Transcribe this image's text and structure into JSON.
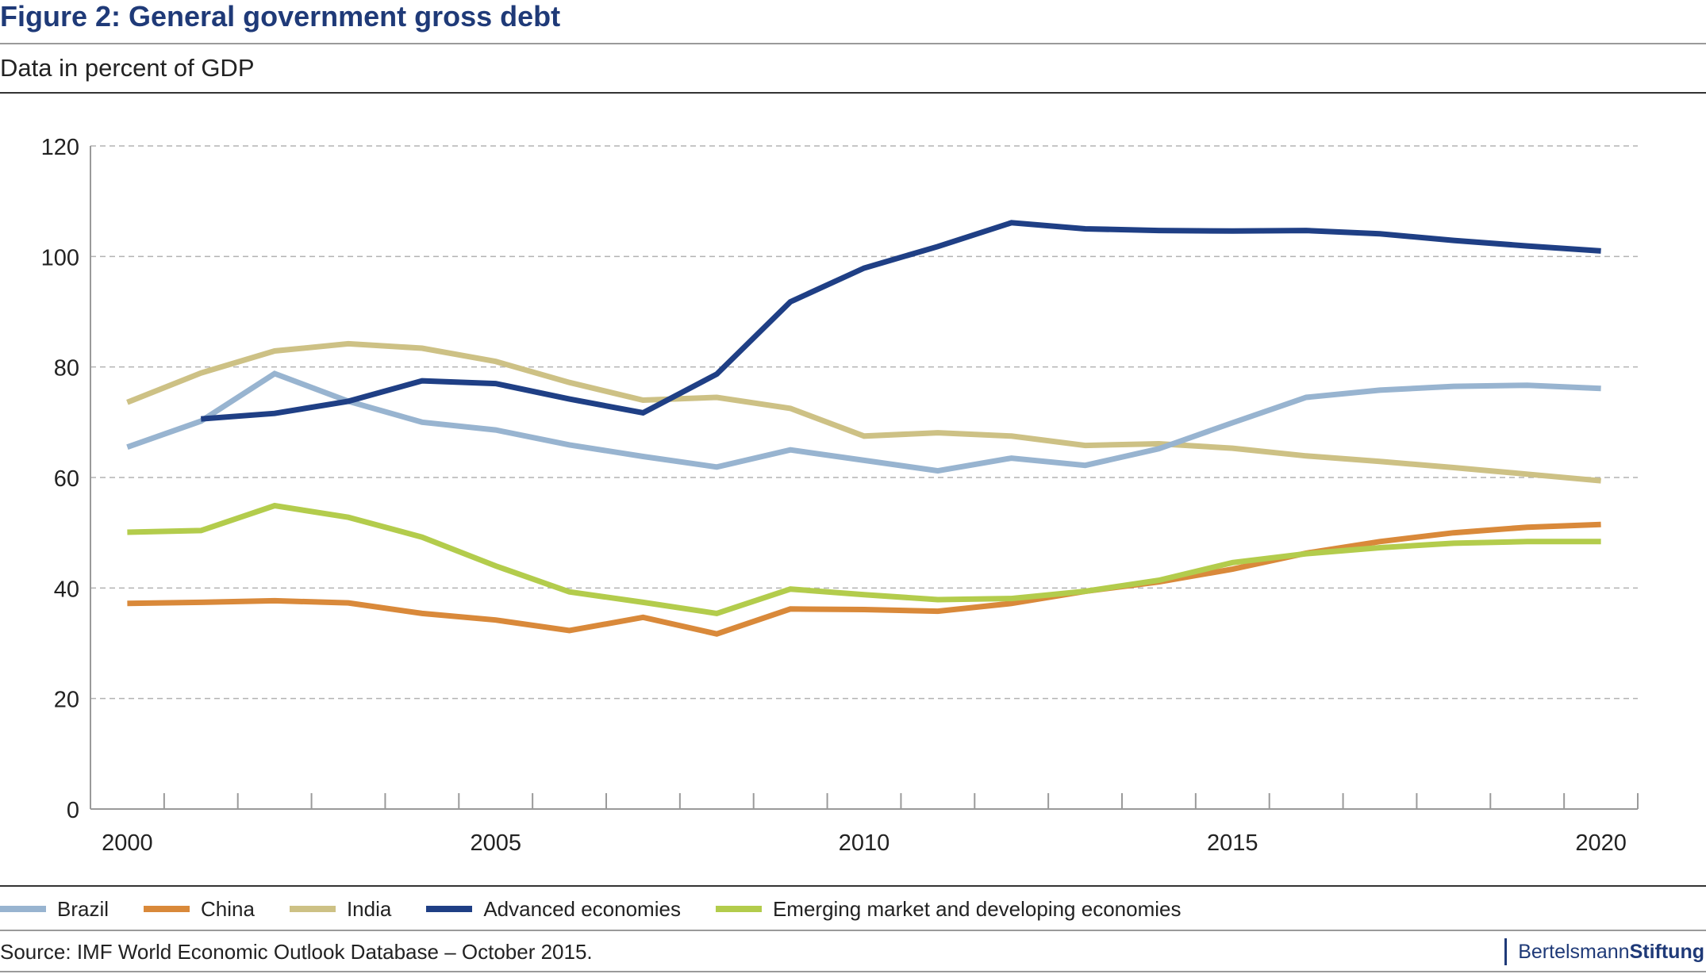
{
  "header": {
    "title": "Figure 2: General government gross debt",
    "subtitle": "Data in percent of GDP"
  },
  "footer": {
    "source": "Source: IMF World Economic Outlook Database – October 2015.",
    "brand_regular": "Bertelsmann",
    "brand_bold": "Stiftung"
  },
  "chart_data": {
    "type": "line",
    "title": "Figure 2: General government gross debt",
    "subtitle": "Data in percent of GDP",
    "xlabel": "",
    "ylabel": "",
    "x": [
      2000,
      2001,
      2002,
      2003,
      2004,
      2005,
      2006,
      2007,
      2008,
      2009,
      2010,
      2011,
      2012,
      2013,
      2014,
      2015,
      2016,
      2017,
      2018,
      2019,
      2020
    ],
    "xlim": [
      1999.5,
      2020.5
    ],
    "ylim": [
      0,
      120
    ],
    "x_ticks": [
      2000,
      2005,
      2010,
      2015,
      2020
    ],
    "y_ticks": [
      0,
      20,
      40,
      60,
      80,
      100,
      120
    ],
    "grid": "horizontal dashed",
    "legend_position": "bottom",
    "series": [
      {
        "name": "Brazil",
        "color": "#98b4d0",
        "values": [
          65.5,
          70.2,
          78.8,
          73.8,
          70.0,
          68.6,
          65.9,
          63.8,
          61.9,
          65.0,
          63.1,
          61.2,
          63.5,
          62.2,
          65.2,
          69.9,
          74.5,
          75.8,
          76.5,
          76.7,
          76.1
        ]
      },
      {
        "name": "China",
        "color": "#d9893a",
        "values": [
          37.2,
          37.4,
          37.7,
          37.3,
          35.4,
          34.2,
          32.3,
          34.7,
          31.7,
          36.2,
          36.1,
          35.8,
          37.2,
          39.4,
          41.1,
          43.4,
          46.3,
          48.4,
          50.0,
          51.0,
          51.5
        ]
      },
      {
        "name": "India",
        "color": "#cdc185",
        "values": [
          73.6,
          78.9,
          82.9,
          84.2,
          83.4,
          81.0,
          77.2,
          74.0,
          74.5,
          72.5,
          67.5,
          68.1,
          67.5,
          65.8,
          66.1,
          65.3,
          63.9,
          62.9,
          61.8,
          60.6,
          59.4
        ]
      },
      {
        "name": "Advanced economies",
        "color": "#1f3f85",
        "values": [
          null,
          70.6,
          71.6,
          73.8,
          77.5,
          77.0,
          74.2,
          71.7,
          78.7,
          91.8,
          97.9,
          101.8,
          106.1,
          105.0,
          104.7,
          104.6,
          104.7,
          104.1,
          102.9,
          101.9,
          101.0
        ]
      },
      {
        "name": "Emerging market and developing economies",
        "color": "#b3cc4c",
        "values": [
          50.1,
          50.4,
          54.9,
          52.8,
          49.2,
          44.0,
          39.3,
          37.4,
          35.4,
          39.8,
          38.8,
          37.9,
          38.1,
          39.4,
          41.4,
          44.6,
          46.2,
          47.3,
          48.1,
          48.4,
          48.4
        ]
      }
    ]
  }
}
